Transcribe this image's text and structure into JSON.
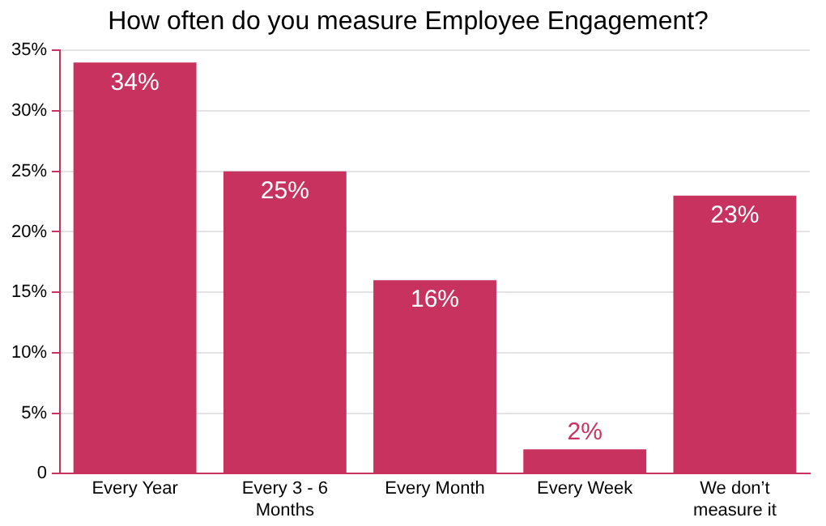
{
  "chart_data": {
    "type": "bar",
    "title": "How often do you measure Employee Engagement?",
    "categories": [
      "Every Year",
      "Every 3 - 6 Months",
      "Every Month",
      "Every Week",
      "We don’t measure it"
    ],
    "values": [
      34,
      25,
      16,
      2,
      23
    ],
    "value_labels": [
      "34%",
      "25%",
      "16%",
      "2%",
      "23%"
    ],
    "color": "#c8325f",
    "ylim": [
      0,
      35
    ],
    "yticks": [
      {
        "value": 0,
        "label": "0"
      },
      {
        "value": 5,
        "label": "5%"
      },
      {
        "value": 10,
        "label": "10%"
      },
      {
        "value": 15,
        "label": "15%"
      },
      {
        "value": 20,
        "label": "20%"
      },
      {
        "value": 25,
        "label": "25%"
      },
      {
        "value": 30,
        "label": "30%"
      },
      {
        "value": 35,
        "label": "35%"
      }
    ],
    "grid": "y",
    "legend": false
  }
}
